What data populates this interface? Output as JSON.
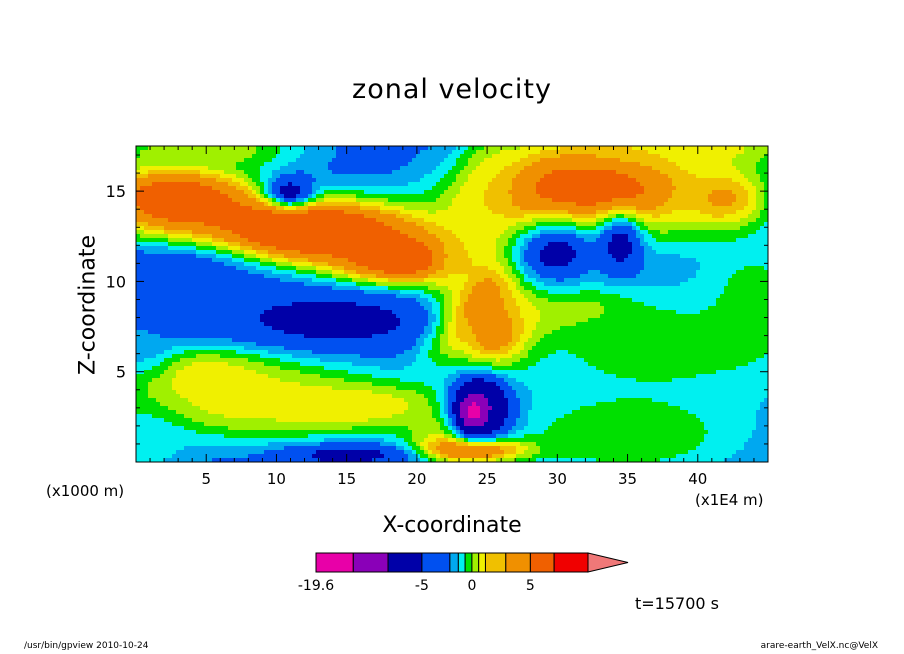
{
  "chart_data": {
    "type": "contour",
    "title": "zonal velocity",
    "xlabel": "X-coordinate",
    "ylabel": "Z-coordinate",
    "x_unit_label": "(x1000 m)",
    "x_unit_label_alt": "(x1E4 m)",
    "xlim": [
      0,
      45
    ],
    "ylim": [
      0,
      17.5
    ],
    "x_ticks": [
      "5",
      "10",
      "15",
      "20",
      "25",
      "30",
      "35",
      "40"
    ],
    "x_tick_values": [
      5,
      10,
      15,
      20,
      25,
      30,
      35,
      40
    ],
    "y_ticks": [
      "5",
      "10",
      "15"
    ],
    "y_tick_values": [
      5,
      10,
      15
    ],
    "colorbar": {
      "tick_labels": [
        "-19.6",
        "-5",
        "0",
        "5"
      ],
      "tick_values": [
        -19.6,
        -5,
        0,
        5
      ],
      "levels": [
        -19.6,
        -15,
        -10,
        -5,
        -3,
        -2,
        -1,
        0,
        1,
        2,
        3,
        5,
        10,
        15
      ],
      "colors": [
        "#e800a8",
        "#8a00b8",
        "#0000a8",
        "#0050f0",
        "#00a8f0",
        "#00f0f0",
        "#00e000",
        "#a0f000",
        "#f0f000",
        "#f0c000",
        "#f09000",
        "#f06000",
        "#f00000",
        "#f07878"
      ]
    },
    "background_value": -4,
    "features": [
      {
        "x": 12,
        "z": 12.8,
        "value": 10,
        "sx": 6,
        "sz": 1.3,
        "tilt": -0.18
      },
      {
        "x": 3,
        "z": 14.5,
        "value": 8,
        "sx": 4,
        "sz": 1.5,
        "tilt": -0.18
      },
      {
        "x": 19,
        "z": 11.2,
        "value": 8,
        "sx": 3.5,
        "sz": 1.0,
        "tilt": -0.2
      },
      {
        "x": 32,
        "z": 15,
        "value": 8,
        "sx": 6,
        "sz": 2.2,
        "tilt": 0.3
      },
      {
        "x": 42,
        "z": 14.5,
        "value": 4,
        "sx": 2.2,
        "sz": 1.3,
        "tilt": 0
      },
      {
        "x": 39,
        "z": 17.5,
        "value": 2,
        "sx": 6,
        "sz": 1,
        "tilt": 0
      },
      {
        "x": 5,
        "z": 17.3,
        "value": 1,
        "sx": 5,
        "sz": 0.8,
        "tilt": 0
      },
      {
        "x": 26,
        "z": 7.8,
        "value": 10,
        "sx": 2.0,
        "sz": 2.0,
        "tilt": 0.3
      },
      {
        "x": 24,
        "z": 8.5,
        "value": 8,
        "sx": 1.3,
        "sz": 1.5,
        "tilt": 0.8
      },
      {
        "x": 30,
        "z": 8.5,
        "value": 5,
        "sx": 3.5,
        "sz": 1.0,
        "tilt": 0
      },
      {
        "x": 5,
        "z": 4.5,
        "value": 3,
        "sx": 3.5,
        "sz": 1.2,
        "tilt": 0
      },
      {
        "x": 15,
        "z": 3.1,
        "value": 3,
        "sx": 5,
        "sz": 0.9,
        "tilt": -0.1
      },
      {
        "x": 8,
        "z": 3.5,
        "value": 1.5,
        "sx": 8,
        "sz": 1.8,
        "tilt": -0.1
      },
      {
        "x": 22,
        "z": 2.0,
        "value": 1.5,
        "sx": 2,
        "sz": 1,
        "tilt": 0
      },
      {
        "x": 35,
        "z": 1.5,
        "value": 0,
        "sx": 7,
        "sz": 2.0,
        "tilt": 0
      },
      {
        "x": 24,
        "z": 0.7,
        "value": 8,
        "sx": 2.5,
        "sz": 0.5,
        "tilt": 0
      },
      {
        "x": 37,
        "z": 6.5,
        "value": -0.2,
        "sx": 8,
        "sz": 2.3,
        "tilt": 0
      },
      {
        "x": 44,
        "z": 9,
        "value": -0.5,
        "sx": 3,
        "sz": 3,
        "tilt": 0
      },
      {
        "x": 30,
        "z": 11,
        "value": -1.5,
        "sx": 3,
        "sz": 2,
        "tilt": 0
      },
      {
        "x": 24,
        "z": 13,
        "value": 2,
        "sx": 1.5,
        "sz": 3.5,
        "tilt": 0.4
      },
      {
        "x": 0.5,
        "z": 7,
        "value": -2.5,
        "sx": 1.5,
        "sz": 1.5,
        "tilt": 0
      },
      {
        "x": 1,
        "z": 1,
        "value": -1.5,
        "sx": 2,
        "sz": 1.5,
        "tilt": 0
      },
      {
        "x": 14,
        "z": 7.8,
        "value": -6,
        "sx": 5,
        "sz": 1.0,
        "tilt": -0.1
      },
      {
        "x": 24.5,
        "z": 3.0,
        "value": -10,
        "sx": 1.5,
        "sz": 1.3,
        "tilt": 0
      },
      {
        "x": 24,
        "z": 2.8,
        "value": -17,
        "sx": 0.6,
        "sz": 0.6,
        "tilt": 0
      },
      {
        "x": 30,
        "z": 11.5,
        "value": -6,
        "sx": 1.8,
        "sz": 1.0,
        "tilt": 0
      },
      {
        "x": 34.5,
        "z": 12,
        "value": -6,
        "sx": 1.2,
        "sz": 1.2,
        "tilt": 0
      },
      {
        "x": 11,
        "z": 15,
        "value": -6,
        "sx": 1.2,
        "sz": 0.6,
        "tilt": 0
      },
      {
        "x": 15,
        "z": 0.4,
        "value": -6,
        "sx": 3,
        "sz": 0.4,
        "tilt": 0
      },
      {
        "x": 3,
        "z": 10,
        "value": -5,
        "sx": 4,
        "sz": 1.5,
        "tilt": 0
      }
    ]
  },
  "colorbar_labels": [
    "-19.6",
    "-5",
    "0",
    "5"
  ],
  "time_label": "t=15700 s",
  "footer_left": "/usr/bin/gpview   2010-10-24",
  "footer_right": "arare-earth_VelX.nc@VelX"
}
